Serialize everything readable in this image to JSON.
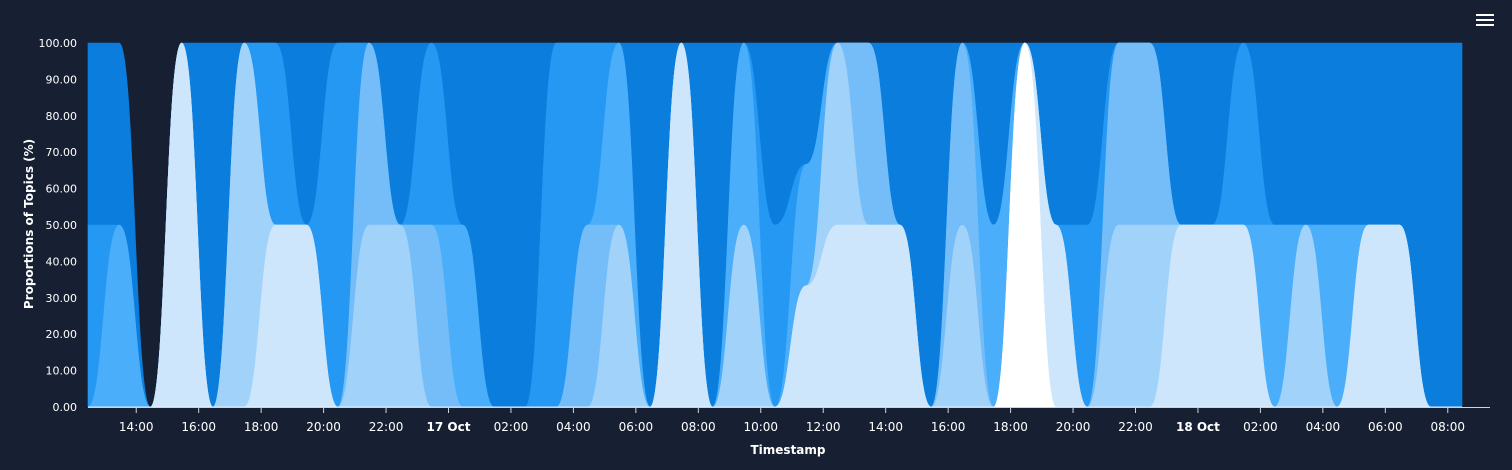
{
  "chart_data": {
    "type": "area",
    "stacked": true,
    "stack_mode": "percent",
    "curve": "smooth",
    "title": "",
    "xlabel": "Timestamp",
    "ylabel": "Proportions of Topics (%)",
    "ylim": [
      0,
      100
    ],
    "yticks": [
      "0.00",
      "10.00",
      "20.00",
      "30.00",
      "40.00",
      "50.00",
      "60.00",
      "70.00",
      "80.00",
      "90.00",
      "100.00"
    ],
    "grid": false,
    "legend": "none",
    "x": [
      "16 Oct 13:00",
      "16 Oct 14:00",
      "16 Oct 15:00",
      "16 Oct 16:00",
      "16 Oct 17:00",
      "16 Oct 18:00",
      "16 Oct 19:00",
      "16 Oct 20:00",
      "16 Oct 21:00",
      "16 Oct 22:00",
      "16 Oct 23:00",
      "17 Oct 00:00",
      "17 Oct 01:00",
      "17 Oct 02:00",
      "17 Oct 03:00",
      "17 Oct 04:00",
      "17 Oct 05:00",
      "17 Oct 06:00",
      "17 Oct 07:00",
      "17 Oct 08:00",
      "17 Oct 09:00",
      "17 Oct 10:00",
      "17 Oct 11:00",
      "17 Oct 12:00",
      "17 Oct 13:00",
      "17 Oct 14:00",
      "17 Oct 15:00",
      "17 Oct 16:00",
      "17 Oct 17:00",
      "17 Oct 18:00",
      "17 Oct 19:00",
      "17 Oct 20:00",
      "17 Oct 21:00",
      "17 Oct 22:00",
      "17 Oct 23:00",
      "18 Oct 00:00",
      "18 Oct 01:00",
      "18 Oct 02:00",
      "18 Oct 03:00",
      "18 Oct 04:00",
      "18 Oct 05:00",
      "18 Oct 06:00",
      "18 Oct 07:00",
      "18 Oct 08:00",
      "18 Oct 09:00"
    ],
    "xticks": [
      {
        "label": "14:00",
        "major": false
      },
      {
        "label": "16:00",
        "major": false
      },
      {
        "label": "18:00",
        "major": false
      },
      {
        "label": "20:00",
        "major": false
      },
      {
        "label": "22:00",
        "major": false
      },
      {
        "label": "17 Oct",
        "major": true
      },
      {
        "label": "02:00",
        "major": false
      },
      {
        "label": "04:00",
        "major": false
      },
      {
        "label": "06:00",
        "major": false
      },
      {
        "label": "08:00",
        "major": false
      },
      {
        "label": "10:00",
        "major": false
      },
      {
        "label": "12:00",
        "major": false
      },
      {
        "label": "14:00",
        "major": false
      },
      {
        "label": "16:00",
        "major": false
      },
      {
        "label": "18:00",
        "major": false
      },
      {
        "label": "20:00",
        "major": false
      },
      {
        "label": "22:00",
        "major": false
      },
      {
        "label": "18 Oct",
        "major": true
      },
      {
        "label": "02:00",
        "major": false
      },
      {
        "label": "04:00",
        "major": false
      },
      {
        "label": "06:00",
        "major": false
      },
      {
        "label": "08:00",
        "major": false
      }
    ],
    "series": [
      {
        "color": "#ffffff",
        "values": [
          0,
          0,
          0,
          0,
          0,
          0,
          0,
          0,
          0,
          0,
          0,
          0,
          0,
          0,
          0,
          0,
          0,
          0,
          0,
          0,
          0,
          0,
          0,
          0,
          0,
          0,
          0,
          0,
          0,
          0,
          100,
          0,
          0,
          0,
          0,
          0,
          0,
          0,
          0,
          0,
          0,
          0,
          0,
          0,
          0
        ]
      },
      {
        "color": "#cde6fb",
        "values": [
          0,
          0,
          0,
          100,
          0,
          0,
          50,
          50,
          0,
          0,
          0,
          0,
          0,
          0,
          0,
          0,
          0,
          0,
          0,
          100,
          0,
          0,
          0,
          50,
          50,
          50,
          50,
          0,
          0,
          0,
          0,
          50,
          0,
          0,
          0,
          50,
          50,
          50,
          0,
          0,
          0,
          50,
          50,
          0,
          0
        ]
      },
      {
        "color": "#a1d2fa",
        "values": [
          0,
          0,
          0,
          0,
          0,
          100,
          0,
          0,
          0,
          50,
          50,
          0,
          0,
          0,
          0,
          0,
          0,
          50,
          0,
          0,
          0,
          50,
          0,
          0,
          50,
          0,
          0,
          0,
          50,
          0,
          0,
          0,
          0,
          50,
          50,
          0,
          0,
          0,
          0,
          50,
          0,
          0,
          0,
          0,
          0
        ]
      },
      {
        "color": "#74bdf8",
        "values": [
          0,
          0,
          0,
          0,
          0,
          0,
          0,
          0,
          0,
          50,
          0,
          50,
          0,
          0,
          0,
          0,
          50,
          0,
          0,
          0,
          0,
          0,
          0,
          0,
          0,
          50,
          0,
          0,
          50,
          0,
          0,
          0,
          0,
          50,
          50,
          0,
          0,
          0,
          0,
          0,
          0,
          0,
          0,
          0,
          0
        ]
      },
      {
        "color": "#4aaefb",
        "values": [
          0,
          50,
          0,
          0,
          0,
          0,
          0,
          0,
          0,
          0,
          0,
          0,
          50,
          0,
          0,
          0,
          0,
          50,
          0,
          0,
          0,
          50,
          0,
          50,
          0,
          0,
          0,
          0,
          0,
          50,
          0,
          0,
          0,
          0,
          0,
          0,
          0,
          0,
          50,
          0,
          50,
          0,
          0,
          0,
          0
        ]
      },
      {
        "color": "#2598f3",
        "values": [
          50,
          0,
          0,
          0,
          0,
          0,
          50,
          0,
          100,
          0,
          0,
          50,
          0,
          0,
          0,
          100,
          50,
          0,
          0,
          0,
          0,
          0,
          50,
          0,
          0,
          0,
          0,
          0,
          0,
          0,
          0,
          0,
          50,
          0,
          0,
          0,
          0,
          50,
          0,
          0,
          0,
          0,
          0,
          0,
          0
        ]
      },
      {
        "color": "#0a7ddd",
        "values": [
          50,
          50,
          0,
          0,
          100,
          0,
          0,
          50,
          0,
          0,
          50,
          0,
          50,
          100,
          100,
          0,
          0,
          0,
          100,
          0,
          50,
          0,
          50,
          50,
          0,
          0,
          50,
          50,
          0,
          50,
          0,
          50,
          50,
          0,
          0,
          50,
          50,
          0,
          50,
          50,
          50,
          50,
          50,
          50,
          50
        ]
      }
    ]
  }
}
